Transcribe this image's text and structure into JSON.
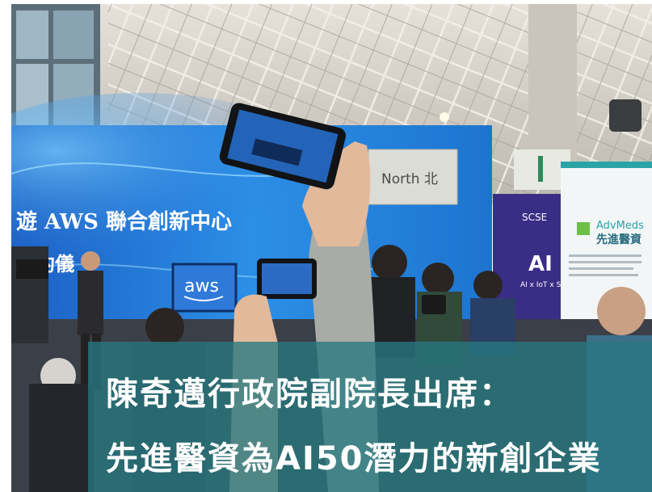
{
  "photo": {
    "backdrop_text_1": "遊 AWS 聯合創新中心",
    "backdrop_text_2": "簽約儀",
    "north_sign": "North 北",
    "aws_logo": "aws",
    "scse_logo": "SCSE",
    "ai_booth_text": "AI -",
    "ai_booth_sub": "AI x IoT x Smar",
    "advmeds_brand": "AdvMeds",
    "advmeds_cn": "先進醫資",
    "exit_sign": "L"
  },
  "caption": {
    "line1": "陳奇邁行政院副院長出席：",
    "line2": "先進醫資為AI50潛力的新創企業"
  },
  "colors": {
    "caption_bg": "#267880",
    "backdrop_blue": "#1f6fd6",
    "ceiling": "#d9d5cc"
  }
}
